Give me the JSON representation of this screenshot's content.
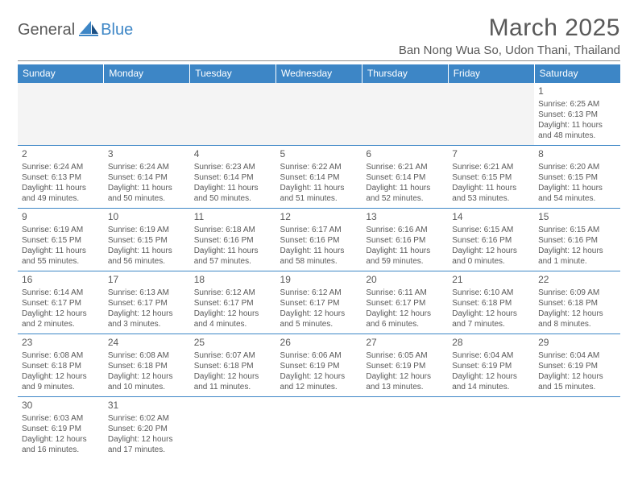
{
  "logo": {
    "a": "General",
    "b": "Blue"
  },
  "title": "March 2025",
  "location": "Ban Nong Wua So, Udon Thani, Thailand",
  "colors": {
    "accent": "#3d86c6",
    "text": "#595959",
    "emptyRow": "#f4f4f4"
  },
  "daysOfWeek": [
    "Sunday",
    "Monday",
    "Tuesday",
    "Wednesday",
    "Thursday",
    "Friday",
    "Saturday"
  ],
  "weeks": [
    [
      null,
      null,
      null,
      null,
      null,
      null,
      {
        "n": "1",
        "sunrise": "Sunrise: 6:25 AM",
        "sunset": "Sunset: 6:13 PM",
        "daylight": "Daylight: 11 hours and 48 minutes."
      }
    ],
    [
      {
        "n": "2",
        "sunrise": "Sunrise: 6:24 AM",
        "sunset": "Sunset: 6:13 PM",
        "daylight": "Daylight: 11 hours and 49 minutes."
      },
      {
        "n": "3",
        "sunrise": "Sunrise: 6:24 AM",
        "sunset": "Sunset: 6:14 PM",
        "daylight": "Daylight: 11 hours and 50 minutes."
      },
      {
        "n": "4",
        "sunrise": "Sunrise: 6:23 AM",
        "sunset": "Sunset: 6:14 PM",
        "daylight": "Daylight: 11 hours and 50 minutes."
      },
      {
        "n": "5",
        "sunrise": "Sunrise: 6:22 AM",
        "sunset": "Sunset: 6:14 PM",
        "daylight": "Daylight: 11 hours and 51 minutes."
      },
      {
        "n": "6",
        "sunrise": "Sunrise: 6:21 AM",
        "sunset": "Sunset: 6:14 PM",
        "daylight": "Daylight: 11 hours and 52 minutes."
      },
      {
        "n": "7",
        "sunrise": "Sunrise: 6:21 AM",
        "sunset": "Sunset: 6:15 PM",
        "daylight": "Daylight: 11 hours and 53 minutes."
      },
      {
        "n": "8",
        "sunrise": "Sunrise: 6:20 AM",
        "sunset": "Sunset: 6:15 PM",
        "daylight": "Daylight: 11 hours and 54 minutes."
      }
    ],
    [
      {
        "n": "9",
        "sunrise": "Sunrise: 6:19 AM",
        "sunset": "Sunset: 6:15 PM",
        "daylight": "Daylight: 11 hours and 55 minutes."
      },
      {
        "n": "10",
        "sunrise": "Sunrise: 6:19 AM",
        "sunset": "Sunset: 6:15 PM",
        "daylight": "Daylight: 11 hours and 56 minutes."
      },
      {
        "n": "11",
        "sunrise": "Sunrise: 6:18 AM",
        "sunset": "Sunset: 6:16 PM",
        "daylight": "Daylight: 11 hours and 57 minutes."
      },
      {
        "n": "12",
        "sunrise": "Sunrise: 6:17 AM",
        "sunset": "Sunset: 6:16 PM",
        "daylight": "Daylight: 11 hours and 58 minutes."
      },
      {
        "n": "13",
        "sunrise": "Sunrise: 6:16 AM",
        "sunset": "Sunset: 6:16 PM",
        "daylight": "Daylight: 11 hours and 59 minutes."
      },
      {
        "n": "14",
        "sunrise": "Sunrise: 6:15 AM",
        "sunset": "Sunset: 6:16 PM",
        "daylight": "Daylight: 12 hours and 0 minutes."
      },
      {
        "n": "15",
        "sunrise": "Sunrise: 6:15 AM",
        "sunset": "Sunset: 6:16 PM",
        "daylight": "Daylight: 12 hours and 1 minute."
      }
    ],
    [
      {
        "n": "16",
        "sunrise": "Sunrise: 6:14 AM",
        "sunset": "Sunset: 6:17 PM",
        "daylight": "Daylight: 12 hours and 2 minutes."
      },
      {
        "n": "17",
        "sunrise": "Sunrise: 6:13 AM",
        "sunset": "Sunset: 6:17 PM",
        "daylight": "Daylight: 12 hours and 3 minutes."
      },
      {
        "n": "18",
        "sunrise": "Sunrise: 6:12 AM",
        "sunset": "Sunset: 6:17 PM",
        "daylight": "Daylight: 12 hours and 4 minutes."
      },
      {
        "n": "19",
        "sunrise": "Sunrise: 6:12 AM",
        "sunset": "Sunset: 6:17 PM",
        "daylight": "Daylight: 12 hours and 5 minutes."
      },
      {
        "n": "20",
        "sunrise": "Sunrise: 6:11 AM",
        "sunset": "Sunset: 6:17 PM",
        "daylight": "Daylight: 12 hours and 6 minutes."
      },
      {
        "n": "21",
        "sunrise": "Sunrise: 6:10 AM",
        "sunset": "Sunset: 6:18 PM",
        "daylight": "Daylight: 12 hours and 7 minutes."
      },
      {
        "n": "22",
        "sunrise": "Sunrise: 6:09 AM",
        "sunset": "Sunset: 6:18 PM",
        "daylight": "Daylight: 12 hours and 8 minutes."
      }
    ],
    [
      {
        "n": "23",
        "sunrise": "Sunrise: 6:08 AM",
        "sunset": "Sunset: 6:18 PM",
        "daylight": "Daylight: 12 hours and 9 minutes."
      },
      {
        "n": "24",
        "sunrise": "Sunrise: 6:08 AM",
        "sunset": "Sunset: 6:18 PM",
        "daylight": "Daylight: 12 hours and 10 minutes."
      },
      {
        "n": "25",
        "sunrise": "Sunrise: 6:07 AM",
        "sunset": "Sunset: 6:18 PM",
        "daylight": "Daylight: 12 hours and 11 minutes."
      },
      {
        "n": "26",
        "sunrise": "Sunrise: 6:06 AM",
        "sunset": "Sunset: 6:19 PM",
        "daylight": "Daylight: 12 hours and 12 minutes."
      },
      {
        "n": "27",
        "sunrise": "Sunrise: 6:05 AM",
        "sunset": "Sunset: 6:19 PM",
        "daylight": "Daylight: 12 hours and 13 minutes."
      },
      {
        "n": "28",
        "sunrise": "Sunrise: 6:04 AM",
        "sunset": "Sunset: 6:19 PM",
        "daylight": "Daylight: 12 hours and 14 minutes."
      },
      {
        "n": "29",
        "sunrise": "Sunrise: 6:04 AM",
        "sunset": "Sunset: 6:19 PM",
        "daylight": "Daylight: 12 hours and 15 minutes."
      }
    ],
    [
      {
        "n": "30",
        "sunrise": "Sunrise: 6:03 AM",
        "sunset": "Sunset: 6:19 PM",
        "daylight": "Daylight: 12 hours and 16 minutes."
      },
      {
        "n": "31",
        "sunrise": "Sunrise: 6:02 AM",
        "sunset": "Sunset: 6:20 PM",
        "daylight": "Daylight: 12 hours and 17 minutes."
      },
      null,
      null,
      null,
      null,
      null
    ]
  ]
}
